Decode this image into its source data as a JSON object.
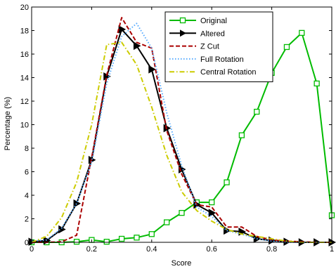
{
  "chart_data": {
    "type": "line",
    "title": "",
    "xlabel": "Score",
    "ylabel": "Percentage (%)",
    "xlim": [
      0,
      1
    ],
    "ylim": [
      0,
      20
    ],
    "xticks": [
      0,
      0.2,
      0.4,
      0.6,
      0.8,
      1
    ],
    "yticks": [
      0,
      2,
      4,
      6,
      8,
      10,
      12,
      14,
      16,
      18,
      20
    ],
    "xtick_labels": [
      "0",
      "0.2",
      "0.4",
      "0.6",
      "0.8",
      "1"
    ],
    "ytick_labels": [
      "0",
      "2",
      "4",
      "6",
      "8",
      "10",
      "12",
      "14",
      "16",
      "18",
      "20"
    ],
    "grid": false,
    "legend_position": "top-right",
    "series": [
      {
        "name": "Original",
        "color": "#00bb00",
        "style": "solid",
        "marker": "square",
        "x": [
          0,
          0.05,
          0.1,
          0.15,
          0.2,
          0.25,
          0.3,
          0.35,
          0.4,
          0.45,
          0.5,
          0.55,
          0.6,
          0.65,
          0.7,
          0.75,
          0.8,
          0.85,
          0.9,
          0.95,
          1.0
        ],
        "y": [
          0,
          0,
          0,
          0.05,
          0.2,
          0.05,
          0.3,
          0.4,
          0.7,
          1.7,
          2.5,
          3.4,
          3.4,
          5.1,
          9.1,
          11.1,
          14.4,
          16.6,
          17.8,
          13.5,
          2.3
        ]
      },
      {
        "name": "Altered",
        "color": "#000000",
        "style": "solid",
        "marker": "triangle-right",
        "x": [
          0,
          0.05,
          0.1,
          0.15,
          0.2,
          0.25,
          0.3,
          0.35,
          0.4,
          0.45,
          0.5,
          0.55,
          0.6,
          0.65,
          0.7,
          0.75,
          0.8,
          0.85,
          0.9,
          0.95,
          1.0
        ],
        "y": [
          0.05,
          0.15,
          1.1,
          3.3,
          7.0,
          14.1,
          18.1,
          16.7,
          14.7,
          9.7,
          6.2,
          3.2,
          2.5,
          1.0,
          0.9,
          0.3,
          0.15,
          0.05,
          0.0,
          0.0,
          0.0
        ]
      },
      {
        "name": "Z Cut",
        "color": "#aa0000",
        "style": "dashed",
        "x": [
          0,
          0.05,
          0.1,
          0.15,
          0.2,
          0.25,
          0.3,
          0.35,
          0.4,
          0.45,
          0.5,
          0.55,
          0.6,
          0.65,
          0.7,
          0.75,
          0.8,
          0.85,
          0.9,
          0.95,
          1.0
        ],
        "y": [
          0.0,
          0.0,
          0.05,
          0.6,
          7.2,
          14.2,
          19.1,
          17.0,
          16.5,
          9.5,
          5.8,
          3.2,
          3.0,
          1.3,
          1.3,
          0.5,
          0.2,
          0.1,
          0.05,
          0.0,
          0.0
        ]
      },
      {
        "name": "Full Rotation",
        "color": "#55aaff",
        "style": "dotted",
        "x": [
          0,
          0.05,
          0.1,
          0.15,
          0.2,
          0.25,
          0.3,
          0.35,
          0.4,
          0.45,
          0.5,
          0.55,
          0.6,
          0.65,
          0.7,
          0.75,
          0.8,
          0.85,
          0.9,
          0.95,
          1.0
        ],
        "y": [
          0.1,
          0.2,
          1.2,
          3.3,
          6.8,
          13.5,
          17.5,
          18.6,
          16.5,
          11.0,
          6.5,
          3.0,
          2.2,
          1.0,
          0.7,
          0.3,
          0.1,
          0.0,
          0.0,
          0.0,
          0.0
        ]
      },
      {
        "name": "Central Rotation",
        "color": "#cccc00",
        "style": "dashdot",
        "x": [
          0,
          0.05,
          0.1,
          0.15,
          0.2,
          0.25,
          0.3,
          0.35,
          0.4,
          0.45,
          0.5,
          0.55,
          0.6,
          0.65,
          0.7,
          0.75,
          0.8,
          0.85,
          0.9,
          0.95,
          1.0
        ],
        "y": [
          0.0,
          0.5,
          2.1,
          5.1,
          10.0,
          16.8,
          17.0,
          15.1,
          11.5,
          7.4,
          4.3,
          2.7,
          1.8,
          1.1,
          0.7,
          0.5,
          0.3,
          0.1,
          0.0,
          0.0,
          0.0
        ]
      }
    ]
  }
}
